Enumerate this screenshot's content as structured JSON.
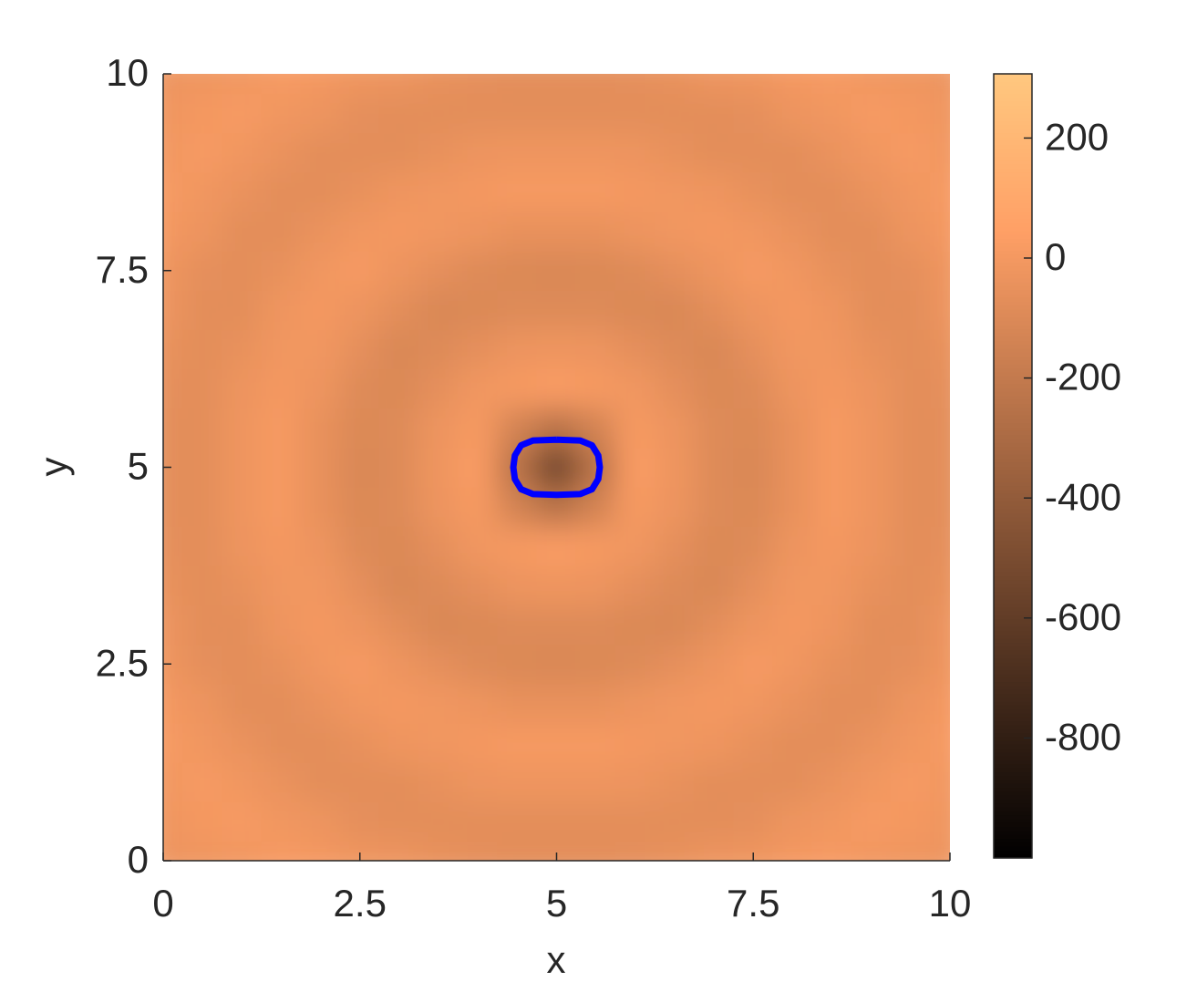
{
  "chart_data": {
    "type": "contourf",
    "xlabel": "x",
    "ylabel": "y",
    "x": [
      0,
      0.5,
      1,
      1.5,
      2,
      2.5,
      3,
      3.5,
      4,
      4.5,
      5,
      5.5,
      6,
      6.5,
      7,
      7.5,
      8,
      8.5,
      9,
      9.5,
      10
    ],
    "y": [
      0,
      0.5,
      1,
      1.5,
      2,
      2.5,
      3,
      3.5,
      4,
      4.5,
      5,
      5.5,
      6,
      6.5,
      7,
      7.5,
      8,
      8.5,
      9,
      9.5,
      10
    ],
    "z": [
      [
        -30,
        -20,
        -10,
        10,
        0,
        -20,
        -30,
        -50,
        -60,
        -70,
        -70,
        -70,
        -60,
        -50,
        -30,
        -20,
        0,
        10,
        -10,
        -20,
        -30
      ],
      [
        -20,
        0,
        10,
        -10,
        -30,
        -60,
        -70,
        -70,
        -70,
        -70,
        -70,
        -70,
        -70,
        -70,
        -70,
        -60,
        -30,
        -10,
        10,
        0,
        -20
      ],
      [
        -10,
        10,
        -10,
        -40,
        -70,
        -70,
        -70,
        -50,
        -30,
        -20,
        -20,
        -20,
        -30,
        -50,
        -70,
        -70,
        -70,
        -40,
        -10,
        10,
        -10
      ],
      [
        10,
        -10,
        -40,
        -70,
        -70,
        -50,
        -20,
        -10,
        0,
        10,
        10,
        10,
        0,
        -10,
        -20,
        -50,
        -70,
        -70,
        -40,
        -10,
        10
      ],
      [
        0,
        -30,
        -70,
        -70,
        -40,
        -10,
        0,
        -10,
        -30,
        -50,
        -50,
        -50,
        -30,
        -10,
        0,
        -10,
        -40,
        -70,
        -70,
        -30,
        0
      ],
      [
        -20,
        -60,
        -70,
        -50,
        -10,
        10,
        -30,
        -60,
        -90,
        -100,
        -110,
        -100,
        -90,
        -60,
        -30,
        10,
        -10,
        -50,
        -70,
        -60,
        -20
      ],
      [
        -30,
        -70,
        -70,
        -20,
        0,
        -30,
        -70,
        -110,
        -100,
        -90,
        -90,
        -90,
        -100,
        -110,
        -70,
        -30,
        0,
        -20,
        -70,
        -70,
        -30
      ],
      [
        -50,
        -70,
        -50,
        -10,
        -10,
        -60,
        -110,
        -90,
        -60,
        -30,
        -20,
        -30,
        -60,
        -90,
        -110,
        -60,
        -10,
        -10,
        -50,
        -70,
        -50
      ],
      [
        -60,
        -70,
        -30,
        0,
        -30,
        -90,
        -100,
        -60,
        -10,
        10,
        20,
        10,
        -10,
        -60,
        -100,
        -90,
        -30,
        0,
        -30,
        -70,
        -60
      ],
      [
        -70,
        -70,
        -20,
        10,
        -50,
        -100,
        -90,
        -30,
        10,
        -140,
        -250,
        -140,
        10,
        -30,
        -90,
        -100,
        -50,
        10,
        -20,
        -70,
        -70
      ],
      [
        -70,
        -70,
        -20,
        10,
        -50,
        -110,
        -90,
        -20,
        20,
        -250,
        -550,
        -250,
        20,
        -20,
        -90,
        -110,
        -50,
        10,
        -20,
        -70,
        -70
      ],
      [
        -70,
        -70,
        -20,
        10,
        -50,
        -100,
        -90,
        -30,
        10,
        -140,
        -250,
        -140,
        10,
        -30,
        -90,
        -100,
        -50,
        10,
        -20,
        -70,
        -70
      ],
      [
        -60,
        -70,
        -30,
        0,
        -30,
        -90,
        -100,
        -60,
        -10,
        10,
        20,
        10,
        -10,
        -60,
        -100,
        -90,
        -30,
        0,
        -30,
        -70,
        -60
      ],
      [
        -50,
        -70,
        -50,
        -10,
        -10,
        -60,
        -110,
        -90,
        -60,
        -30,
        -20,
        -30,
        -60,
        -90,
        -110,
        -60,
        -10,
        -10,
        -50,
        -70,
        -50
      ],
      [
        -30,
        -70,
        -70,
        -20,
        0,
        -30,
        -70,
        -110,
        -100,
        -90,
        -90,
        -90,
        -100,
        -110,
        -70,
        -30,
        0,
        -20,
        -70,
        -70,
        -30
      ],
      [
        -20,
        -60,
        -70,
        -50,
        -10,
        10,
        -30,
        -60,
        -90,
        -100,
        -110,
        -100,
        -90,
        -60,
        -30,
        10,
        -10,
        -50,
        -70,
        -60,
        -20
      ],
      [
        0,
        -30,
        -70,
        -70,
        -40,
        -10,
        0,
        -10,
        -30,
        -50,
        -50,
        -50,
        -30,
        -10,
        0,
        -10,
        -40,
        -70,
        -70,
        -30,
        0
      ],
      [
        10,
        -10,
        -40,
        -70,
        -70,
        -50,
        -20,
        -10,
        0,
        10,
        10,
        10,
        0,
        -10,
        -20,
        -50,
        -70,
        -70,
        -40,
        -10,
        10
      ],
      [
        -10,
        10,
        -10,
        -40,
        -70,
        -70,
        -70,
        -50,
        -30,
        -20,
        -20,
        -20,
        -30,
        -50,
        -70,
        -70,
        -70,
        -40,
        -10,
        10,
        -10
      ],
      [
        -20,
        0,
        10,
        -10,
        -30,
        -60,
        -70,
        -70,
        -70,
        -70,
        -70,
        -70,
        -70,
        -70,
        -70,
        -60,
        -30,
        -10,
        10,
        0,
        -20
      ],
      [
        -30,
        -20,
        -10,
        10,
        0,
        -20,
        -30,
        -50,
        -60,
        -70,
        -70,
        -70,
        -60,
        -50,
        -30,
        -20,
        0,
        10,
        -10,
        -20,
        -30
      ]
    ],
    "xlim": [
      0,
      10
    ],
    "ylim": [
      0,
      10
    ],
    "xticks": [
      0,
      2.5,
      5,
      7.5,
      10
    ],
    "yticks": [
      0,
      2.5,
      5,
      7.5,
      10
    ],
    "colormap": "copper",
    "clim": [
      -1000,
      307
    ],
    "cticks": [
      -800,
      -600,
      -400,
      -200,
      0,
      200
    ],
    "contour": {
      "color": "#0000ff",
      "x": [
        5,
        5.3,
        5.45,
        5.53,
        5.55,
        5.53,
        5.45,
        5.3,
        5,
        4.7,
        4.55,
        4.47,
        4.45,
        4.47,
        4.55,
        4.7,
        5
      ],
      "y": [
        5.35,
        5.34,
        5.28,
        5.15,
        5,
        4.85,
        4.72,
        4.66,
        4.65,
        4.66,
        4.72,
        4.85,
        5,
        5.15,
        5.28,
        5.34,
        5.35
      ]
    }
  }
}
